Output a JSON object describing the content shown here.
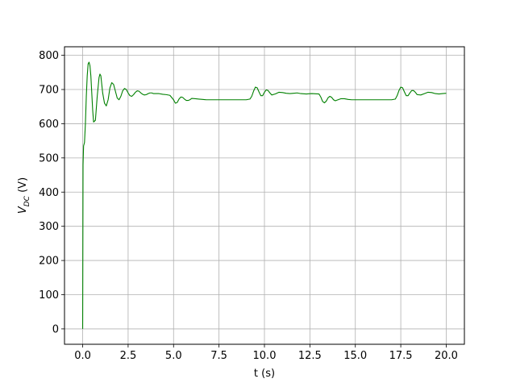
{
  "chart_data": {
    "type": "line",
    "title": "",
    "xlabel": "t (s)",
    "ylabel_main": "V",
    "ylabel_sub": "DC",
    "ylabel_unit": " (V)",
    "xlim": [
      -1.0,
      21.0
    ],
    "ylim": [
      -45,
      825
    ],
    "x_ticks": [
      0.0,
      2.5,
      5.0,
      7.5,
      10.0,
      12.5,
      15.0,
      17.5,
      20.0
    ],
    "x_tick_labels": [
      "0.0",
      "2.5",
      "5.0",
      "7.5",
      "10.0",
      "12.5",
      "15.0",
      "17.5",
      "20.0"
    ],
    "y_ticks": [
      0,
      100,
      200,
      300,
      400,
      500,
      600,
      700,
      800
    ],
    "y_tick_labels": [
      "0",
      "100",
      "200",
      "300",
      "400",
      "500",
      "600",
      "700",
      "800"
    ],
    "grid": true,
    "legend": "none",
    "series": [
      {
        "color": "#008000",
        "x": [
          0.0,
          0.02,
          0.05,
          0.1,
          0.15,
          0.2,
          0.25,
          0.3,
          0.35,
          0.4,
          0.45,
          0.5,
          0.55,
          0.6,
          0.7,
          0.8,
          0.9,
          0.95,
          1.0,
          1.05,
          1.1,
          1.2,
          1.3,
          1.4,
          1.5,
          1.6,
          1.7,
          1.8,
          1.9,
          2.0,
          2.1,
          2.2,
          2.3,
          2.4,
          2.5,
          2.6,
          2.7,
          2.8,
          2.9,
          3.0,
          3.1,
          3.2,
          3.3,
          3.4,
          3.5,
          3.6,
          3.7,
          3.8,
          3.9,
          4.0,
          4.2,
          4.4,
          4.6,
          4.8,
          5.0,
          5.1,
          5.2,
          5.3,
          5.4,
          5.5,
          5.6,
          5.7,
          5.8,
          5.9,
          6.0,
          6.2,
          6.4,
          6.6,
          6.8,
          7.0,
          7.3,
          7.6,
          8.0,
          8.5,
          9.0,
          9.2,
          9.3,
          9.4,
          9.5,
          9.6,
          9.7,
          9.8,
          9.9,
          10.0,
          10.1,
          10.2,
          10.3,
          10.4,
          10.6,
          10.8,
          11.0,
          11.2,
          11.4,
          11.6,
          11.8,
          12.0,
          12.3,
          12.6,
          13.0,
          13.1,
          13.2,
          13.3,
          13.4,
          13.5,
          13.6,
          13.7,
          13.8,
          13.9,
          14.0,
          14.2,
          14.4,
          14.6,
          14.8,
          15.0,
          15.5,
          16.0,
          16.5,
          17.0,
          17.2,
          17.3,
          17.4,
          17.5,
          17.6,
          17.7,
          17.8,
          17.9,
          18.0,
          18.1,
          18.2,
          18.3,
          18.4,
          18.6,
          18.8,
          19.0,
          19.2,
          19.4,
          19.6,
          19.8,
          20.0
        ],
        "values": [
          0,
          480,
          535,
          545,
          600,
          680,
          740,
          775,
          780,
          770,
          740,
          690,
          640,
          605,
          610,
          680,
          735,
          745,
          740,
          715,
          690,
          660,
          652,
          670,
          705,
          720,
          715,
          695,
          675,
          670,
          680,
          696,
          703,
          700,
          690,
          682,
          680,
          685,
          692,
          696,
          695,
          690,
          686,
          684,
          685,
          688,
          690,
          690,
          688,
          688,
          688,
          686,
          685,
          683,
          670,
          660,
          662,
          672,
          678,
          677,
          672,
          668,
          668,
          670,
          674,
          673,
          672,
          671,
          670,
          670,
          670,
          670,
          670,
          670,
          670,
          672,
          680,
          695,
          707,
          705,
          693,
          682,
          682,
          692,
          699,
          697,
          690,
          684,
          687,
          692,
          691,
          689,
          688,
          689,
          690,
          688,
          687,
          688,
          687,
          678,
          665,
          661,
          666,
          676,
          680,
          677,
          670,
          667,
          669,
          673,
          673,
          671,
          670,
          670,
          670,
          670,
          670,
          670,
          672,
          682,
          697,
          707,
          705,
          693,
          682,
          682,
          690,
          697,
          697,
          692,
          685,
          684,
          688,
          692,
          691,
          688,
          687,
          688,
          689
        ]
      }
    ]
  }
}
